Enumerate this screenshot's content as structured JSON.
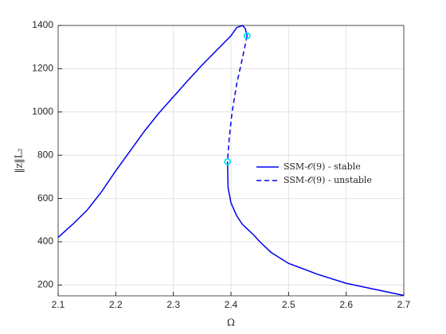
{
  "chart_data": {
    "type": "line",
    "xlabel": "Ω",
    "ylabel": "‖z‖L₂",
    "xlim": [
      2.1,
      2.7
    ],
    "ylim": [
      150,
      1400
    ],
    "xticks": [
      2.1,
      2.2,
      2.3,
      2.4,
      2.5,
      2.6,
      2.7
    ],
    "yticks": [
      200,
      400,
      600,
      800,
      1000,
      1200,
      1400
    ],
    "grid": true,
    "legend_location": "east",
    "series": [
      {
        "name": "SSM-𝒪(9) - stable",
        "color": "#0000ee",
        "dash": "solid",
        "x": [
          2.1,
          2.125,
          2.15,
          2.175,
          2.2,
          2.225,
          2.25,
          2.275,
          2.3,
          2.325,
          2.35,
          2.375,
          2.4,
          2.41,
          2.42,
          2.425,
          2.428,
          null,
          2.394,
          2.395,
          2.4,
          2.41,
          2.42,
          2.43,
          2.44,
          2.45,
          2.47,
          2.5,
          2.55,
          2.6,
          2.65,
          2.7
        ],
        "values": [
          420,
          480,
          545,
          630,
          728,
          820,
          912,
          995,
          1070,
          1145,
          1217,
          1285,
          1352,
          1390,
          1400,
          1385,
          1352,
          null,
          770,
          650,
          580,
          520,
          480,
          455,
          430,
          400,
          350,
          300,
          250,
          208,
          180,
          152
        ]
      },
      {
        "name": "SSM-𝒪(9) - unstable",
        "color": "#0000ee",
        "dash": "dashed",
        "x": [
          2.428,
          2.42,
          2.41,
          2.402,
          2.397,
          2.394
        ],
        "values": [
          1352,
          1250,
          1130,
          1000,
          880,
          770
        ]
      }
    ],
    "markers": {
      "color": "#00e5ee",
      "x": [
        2.428,
        2.394
      ],
      "values": [
        1352,
        770
      ]
    }
  }
}
